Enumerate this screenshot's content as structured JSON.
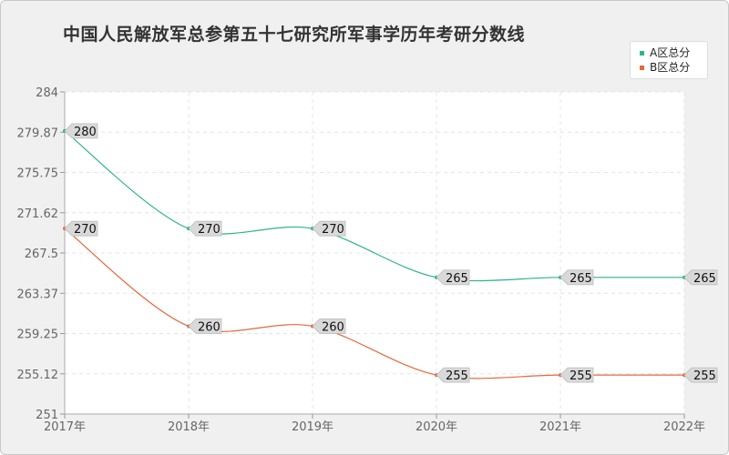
{
  "chart_data": {
    "type": "line",
    "title": "中国人民解放军总参第五十七研究所军事学历年考研分数线",
    "categories": [
      "2017年",
      "2018年",
      "2019年",
      "2020年",
      "2021年",
      "2022年"
    ],
    "ylim": [
      251,
      284
    ],
    "yticks": [
      "251",
      "255.12",
      "259.25",
      "263.37",
      "267.5",
      "271.62",
      "275.75",
      "279.87",
      "284"
    ],
    "grid": true,
    "legend_position": "top-right",
    "series": [
      {
        "name": "A区总分",
        "values": [
          280,
          270,
          270,
          265,
          265,
          265
        ],
        "color": "#2db38a"
      },
      {
        "name": "B区总分",
        "values": [
          270,
          260,
          260,
          255,
          255,
          255
        ],
        "color": "#e06a3c"
      }
    ]
  }
}
